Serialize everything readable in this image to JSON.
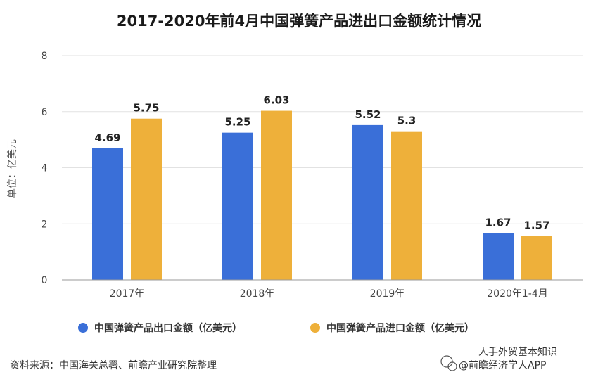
{
  "chart_data": {
    "type": "bar",
    "title": "2017-2020年前4月中国弹簧产品进出口金额统计情况",
    "ylabel": "单位：亿美元",
    "xlabel": "",
    "categories": [
      "2017年",
      "2018年",
      "2019年",
      "2020年1-4月"
    ],
    "ylim": [
      0,
      8
    ],
    "yticks": [
      0,
      2,
      4,
      6,
      8
    ],
    "grid": true,
    "legend_position": "bottom",
    "series": [
      {
        "name": "中国弹簧产品出口金额（亿美元）",
        "values": [
          4.69,
          5.25,
          5.52,
          1.67
        ],
        "labels": [
          "4.69",
          "5.25",
          "5.52",
          "1.67"
        ],
        "color": "#3a6fd8"
      },
      {
        "name": "中国弹簧产品进口金额（亿美元）",
        "values": [
          5.75,
          6.03,
          5.3,
          1.57
        ],
        "labels": [
          "5.75",
          "6.03",
          "5.3",
          "1.57"
        ],
        "color": "#eeb03a"
      }
    ]
  },
  "footer": {
    "source": "资料来源：中国海关总署、前瞻产业研究院整理",
    "watermark": "@前瞻经济学人APP",
    "watermark_partial": "人手外贸基本知识"
  }
}
